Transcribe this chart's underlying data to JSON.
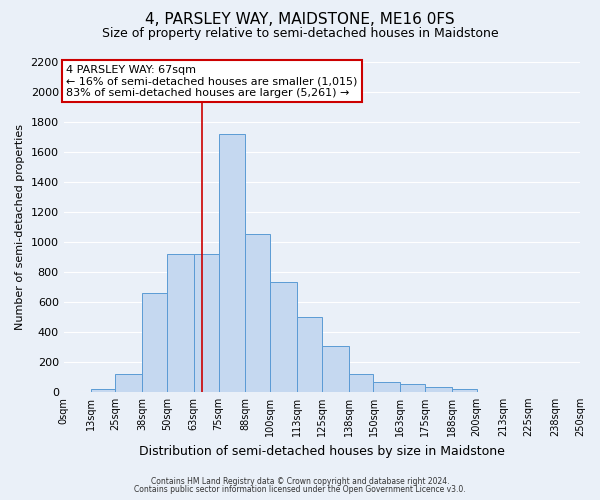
{
  "title": "4, PARSLEY WAY, MAIDSTONE, ME16 0FS",
  "subtitle": "Size of property relative to semi-detached houses in Maidstone",
  "xlabel": "Distribution of semi-detached houses by size in Maidstone",
  "ylabel": "Number of semi-detached properties",
  "footnote1": "Contains HM Land Registry data © Crown copyright and database right 2024.",
  "footnote2": "Contains public sector information licensed under the Open Government Licence v3.0.",
  "bar_labels": [
    "0sqm",
    "13sqm",
    "25sqm",
    "38sqm",
    "50sqm",
    "63sqm",
    "75sqm",
    "88sqm",
    "100sqm",
    "113sqm",
    "125sqm",
    "138sqm",
    "150sqm",
    "163sqm",
    "175sqm",
    "188sqm",
    "200sqm",
    "213sqm",
    "225sqm",
    "238sqm",
    "250sqm"
  ],
  "bar_values": [
    0,
    20,
    120,
    660,
    920,
    920,
    1720,
    1050,
    730,
    500,
    305,
    120,
    65,
    50,
    30,
    20,
    0,
    0,
    0,
    0
  ],
  "bar_color": "#c5d8f0",
  "bar_edge_color": "#5b9bd5",
  "annotation_title": "4 PARSLEY WAY: 67sqm",
  "annotation_line1": "← 16% of semi-detached houses are smaller (1,015)",
  "annotation_line2": "83% of semi-detached houses are larger (5,261) →",
  "annotation_box_edge": "#cc0000",
  "vline_x": 67,
  "vline_color": "#cc0000",
  "ylim": [
    0,
    2200
  ],
  "yticks": [
    0,
    200,
    400,
    600,
    800,
    1000,
    1200,
    1400,
    1600,
    1800,
    2000,
    2200
  ],
  "bg_color": "#eaf0f8",
  "plot_bg_color": "#eaf0f8",
  "grid_color": "#ffffff",
  "title_fontsize": 11,
  "subtitle_fontsize": 9
}
